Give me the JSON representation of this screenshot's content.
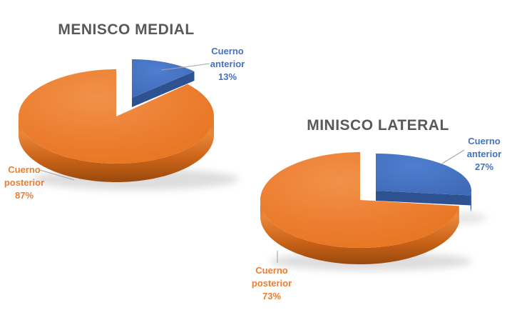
{
  "page": {
    "background": "#FFFFFF"
  },
  "chart_data": [
    {
      "type": "pie",
      "style": "3d-exploded",
      "title": "MENISCO MEDIAL",
      "title_color": "#595959",
      "unit": "%",
      "start_angle_deg": -90,
      "direction": "clockwise",
      "legend": "none",
      "slices": [
        {
          "label": "Cuerno anterior",
          "value": 13,
          "color": "#4472C4",
          "exploded": true
        },
        {
          "label": "Cuerno posterior",
          "value": 87,
          "color": "#ED7D31",
          "exploded": false
        }
      ],
      "data_labels": [
        {
          "lines": [
            "Cuerno",
            "anterior",
            "13%"
          ],
          "color": "#4472C4"
        },
        {
          "lines": [
            "Cuerno",
            "posterior",
            "87%"
          ],
          "color": "#ED7D31"
        }
      ],
      "leader_line_color": "#A6A6A6"
    },
    {
      "type": "pie",
      "style": "3d-exploded",
      "title": "MINISCO LATERAL",
      "title_color": "#595959",
      "unit": "%",
      "start_angle_deg": -90,
      "direction": "clockwise",
      "legend": "none",
      "slices": [
        {
          "label": "Cuerno anterior",
          "value": 27,
          "color": "#4472C4",
          "exploded": true
        },
        {
          "label": "Cuerno posterior",
          "value": 73,
          "color": "#ED7D31",
          "exploded": false
        }
      ],
      "data_labels": [
        {
          "lines": [
            "Cuerno",
            "anterior",
            "27%"
          ],
          "color": "#4472C4"
        },
        {
          "lines": [
            "Cuerno",
            "posterior",
            "73%"
          ],
          "color": "#ED7D31"
        }
      ],
      "leader_line_color": "#A6A6A6"
    }
  ]
}
